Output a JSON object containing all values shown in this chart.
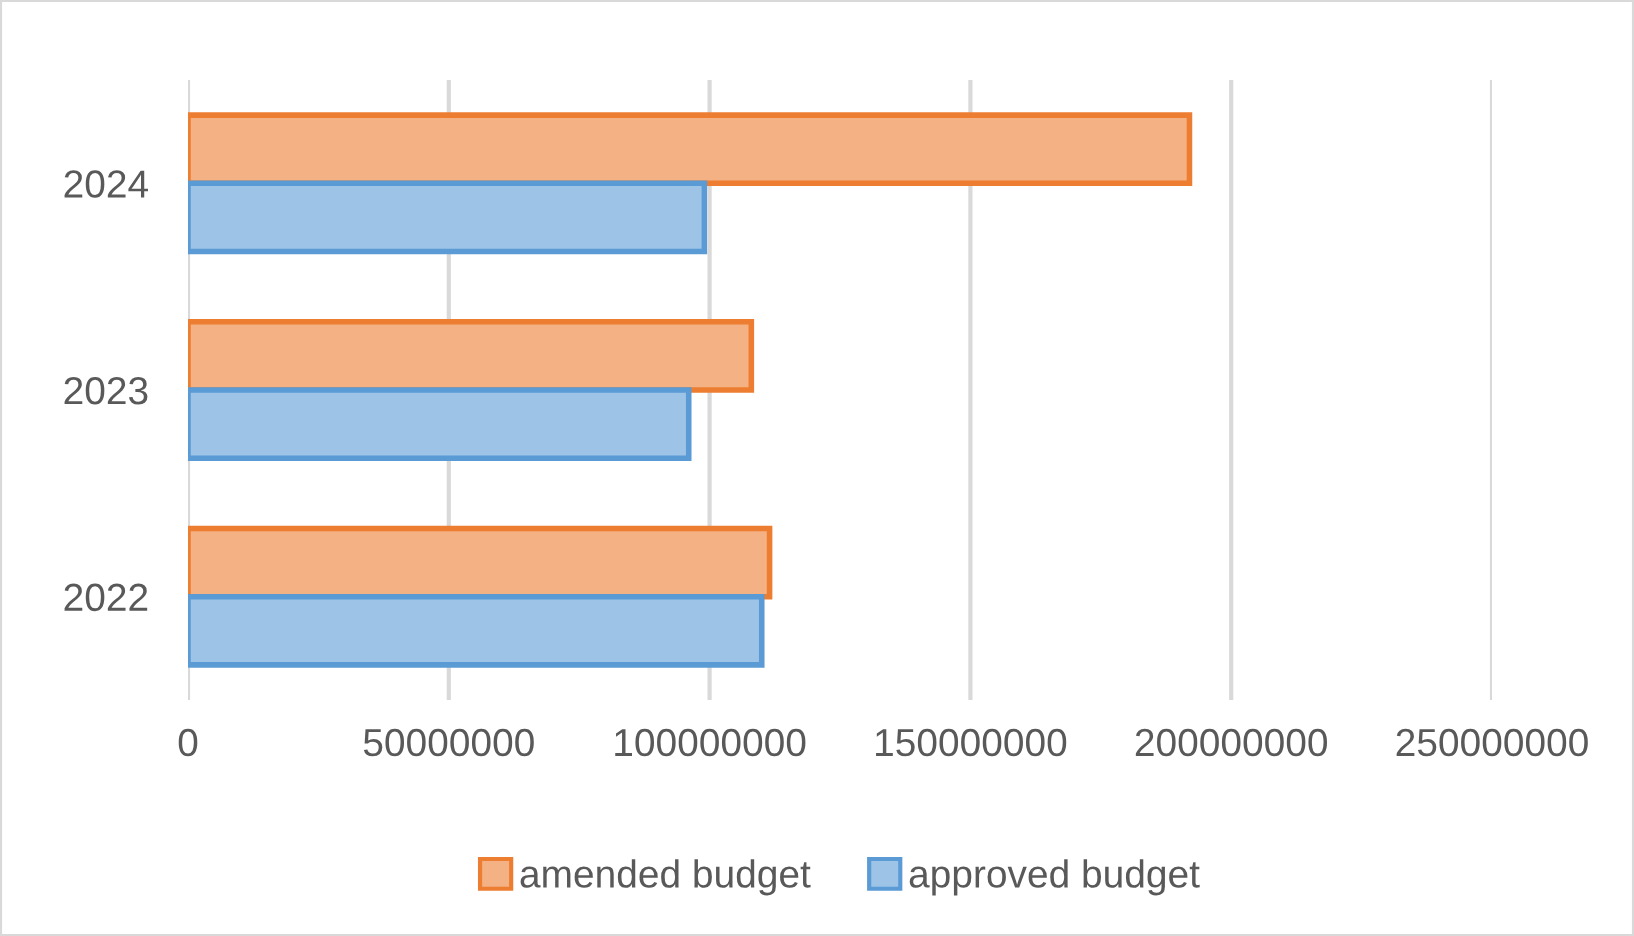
{
  "chart_data": {
    "type": "bar",
    "orientation": "horizontal",
    "categories": [
      "2024",
      "2023",
      "2022"
    ],
    "series": [
      {
        "name": "amended budget",
        "color": "#f4b183",
        "values": [
          192000000,
          108000000,
          111500000
        ]
      },
      {
        "name": "approved budget",
        "color": "#9dc3e6",
        "values": [
          99000000,
          96000000,
          110000000
        ]
      }
    ],
    "xlim": [
      0,
      250000000
    ],
    "xticks": [
      0,
      50000000,
      100000000,
      150000000,
      200000000,
      250000000
    ],
    "grid": "x",
    "legend": "bottom"
  }
}
